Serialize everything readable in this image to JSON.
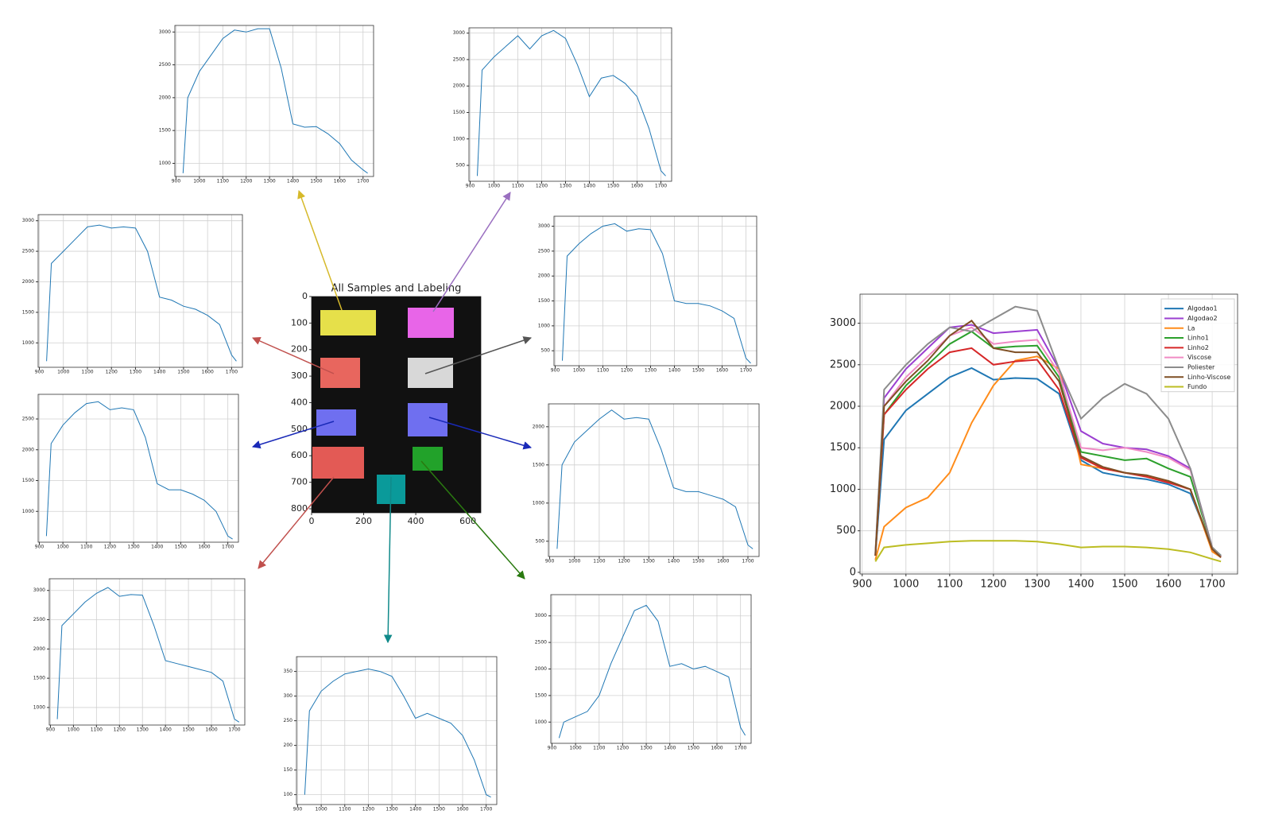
{
  "chart_data": [
    {
      "type": "line",
      "x": [
        930,
        950,
        1000,
        1050,
        1100,
        1150,
        1200,
        1250,
        1300,
        1350,
        1400,
        1450,
        1500,
        1550,
        1600,
        1650,
        1700,
        1720
      ],
      "xlim": [
        895,
        1758
      ],
      "ylim": [
        -20,
        3350
      ],
      "xticks": [
        900,
        1000,
        1100,
        1200,
        1300,
        1400,
        1500,
        1600,
        1700
      ],
      "yticks": [
        0,
        500,
        1000,
        1500,
        2000,
        2500,
        3000
      ],
      "grid": true,
      "legend": "upper right",
      "series": [
        {
          "name": "Algodao1",
          "color": "#1f77b4",
          "values": [
            200,
            1600,
            1950,
            2150,
            2350,
            2460,
            2320,
            2340,
            2330,
            2150,
            1350,
            1200,
            1150,
            1120,
            1060,
            950,
            300,
            200
          ]
        },
        {
          "name": "Algodao2",
          "color": "#9b3fd1",
          "values": [
            220,
            2100,
            2450,
            2700,
            2950,
            2980,
            2880,
            2900,
            2920,
            2450,
            1700,
            1550,
            1500,
            1480,
            1400,
            1250,
            300,
            200
          ]
        },
        {
          "name": "La",
          "color": "#ff8c1a",
          "values": [
            150,
            550,
            780,
            900,
            1200,
            1800,
            2250,
            2550,
            2600,
            2450,
            1300,
            1250,
            1200,
            1160,
            1100,
            1000,
            250,
            180
          ]
        },
        {
          "name": "Linho1",
          "color": "#2ca02c",
          "values": [
            200,
            1900,
            2250,
            2500,
            2750,
            2900,
            2700,
            2720,
            2730,
            2350,
            1450,
            1400,
            1350,
            1370,
            1250,
            1150,
            300,
            200
          ]
        },
        {
          "name": "Linho2",
          "color": "#d62728",
          "values": [
            200,
            1900,
            2200,
            2450,
            2650,
            2700,
            2500,
            2540,
            2560,
            2200,
            1380,
            1250,
            1200,
            1150,
            1080,
            1000,
            280,
            180
          ]
        },
        {
          "name": "Viscose",
          "color": "#f08bc4",
          "values": [
            210,
            2000,
            2350,
            2600,
            2850,
            2950,
            2750,
            2780,
            2800,
            2400,
            1500,
            1470,
            1500,
            1450,
            1380,
            1230,
            300,
            190
          ]
        },
        {
          "name": "Poliester",
          "color": "#8c8c8c",
          "values": [
            230,
            2200,
            2500,
            2750,
            2950,
            2900,
            3050,
            3200,
            3150,
            2450,
            1850,
            2100,
            2270,
            2150,
            1850,
            1250,
            300,
            200
          ]
        },
        {
          "name": "Linho-Viscose",
          "color": "#7f4f24",
          "values": [
            200,
            2000,
            2300,
            2550,
            2850,
            3030,
            2700,
            2650,
            2650,
            2300,
            1400,
            1270,
            1200,
            1170,
            1100,
            1000,
            280,
            180
          ]
        },
        {
          "name": "Fundo",
          "color": "#bcbd22",
          "values": [
            130,
            300,
            330,
            350,
            370,
            380,
            380,
            380,
            370,
            340,
            300,
            310,
            310,
            300,
            280,
            240,
            160,
            130
          ]
        }
      ]
    },
    {
      "type": "image",
      "title": "All Samples and Labeling",
      "xlim": [
        0,
        650
      ],
      "ylim": [
        0,
        815
      ],
      "xticks": [
        0,
        200,
        400,
        600
      ],
      "yticks": [
        0,
        100,
        200,
        300,
        400,
        500,
        600,
        700,
        800
      ]
    },
    {
      "type": "line",
      "color": "#1f77b4",
      "x": [
        930,
        950,
        1000,
        1050,
        1100,
        1150,
        1200,
        1250,
        1300,
        1350,
        1400,
        1450,
        1500,
        1550,
        1600,
        1650,
        1700,
        1720
      ],
      "xlim": [
        895,
        1745
      ],
      "ylim": [
        800,
        3100
      ],
      "xticks": [
        900,
        1000,
        1100,
        1200,
        1300,
        1400,
        1500,
        1600,
        1700
      ],
      "yticks": [
        1000,
        1500,
        2000,
        2500,
        3000
      ],
      "grid": true,
      "values": [
        850,
        2000,
        2400,
        2650,
        2900,
        3030,
        3000,
        3050,
        3050,
        2450,
        1600,
        1550,
        1560,
        1450,
        1300,
        1050,
        900,
        850
      ]
    },
    {
      "type": "line",
      "color": "#1f77b4",
      "x": [
        930,
        950,
        1000,
        1050,
        1100,
        1150,
        1200,
        1250,
        1300,
        1350,
        1400,
        1450,
        1500,
        1550,
        1600,
        1650,
        1700,
        1720
      ],
      "xlim": [
        895,
        1745
      ],
      "ylim": [
        200,
        3100
      ],
      "xticks": [
        900,
        1000,
        1100,
        1200,
        1300,
        1400,
        1500,
        1600,
        1700
      ],
      "yticks": [
        500,
        1000,
        1500,
        2000,
        2500,
        3000
      ],
      "grid": true,
      "values": [
        300,
        2300,
        2550,
        2750,
        2950,
        2700,
        2950,
        3050,
        2900,
        2400,
        1800,
        2150,
        2200,
        2050,
        1800,
        1200,
        400,
        300
      ]
    },
    {
      "type": "line",
      "color": "#1f77b4",
      "x": [
        930,
        950,
        1000,
        1050,
        1100,
        1150,
        1200,
        1250,
        1300,
        1350,
        1400,
        1450,
        1500,
        1550,
        1600,
        1650,
        1700,
        1720
      ],
      "xlim": [
        895,
        1745
      ],
      "ylim": [
        600,
        3100
      ],
      "xticks": [
        900,
        1000,
        1100,
        1200,
        1300,
        1400,
        1500,
        1600,
        1700
      ],
      "yticks": [
        1000,
        1500,
        2000,
        2500,
        3000
      ],
      "grid": true,
      "values": [
        700,
        2300,
        2500,
        2700,
        2900,
        2930,
        2880,
        2900,
        2880,
        2500,
        1750,
        1700,
        1600,
        1550,
        1450,
        1300,
        800,
        700
      ]
    },
    {
      "type": "line",
      "color": "#1f77b4",
      "x": [
        930,
        950,
        1000,
        1050,
        1100,
        1150,
        1200,
        1250,
        1300,
        1350,
        1400,
        1450,
        1500,
        1550,
        1600,
        1650,
        1700,
        1720
      ],
      "xlim": [
        895,
        1745
      ],
      "ylim": [
        200,
        3200
      ],
      "xticks": [
        900,
        1000,
        1100,
        1200,
        1300,
        1400,
        1500,
        1600,
        1700
      ],
      "yticks": [
        500,
        1000,
        1500,
        2000,
        2500,
        3000
      ],
      "grid": true,
      "values": [
        300,
        2400,
        2650,
        2850,
        3000,
        3050,
        2900,
        2950,
        2930,
        2450,
        1500,
        1450,
        1450,
        1400,
        1300,
        1150,
        350,
        250
      ]
    },
    {
      "type": "line",
      "color": "#1f77b4",
      "x": [
        930,
        950,
        1000,
        1050,
        1100,
        1150,
        1200,
        1250,
        1300,
        1350,
        1400,
        1450,
        1500,
        1550,
        1600,
        1650,
        1700,
        1720
      ],
      "xlim": [
        895,
        1745
      ],
      "ylim": [
        500,
        2900
      ],
      "xticks": [
        900,
        1000,
        1100,
        1200,
        1300,
        1400,
        1500,
        1600,
        1700
      ],
      "yticks": [
        1000,
        1500,
        2000,
        2500
      ],
      "grid": true,
      "values": [
        600,
        2100,
        2400,
        2600,
        2750,
        2780,
        2650,
        2680,
        2650,
        2200,
        1450,
        1350,
        1350,
        1280,
        1180,
        1000,
        600,
        550
      ]
    },
    {
      "type": "line",
      "color": "#1f77b4",
      "x": [
        930,
        950,
        1000,
        1050,
        1100,
        1150,
        1200,
        1250,
        1300,
        1350,
        1400,
        1450,
        1500,
        1550,
        1600,
        1650,
        1700,
        1720
      ],
      "xlim": [
        895,
        1745
      ],
      "ylim": [
        300,
        2300
      ],
      "xticks": [
        900,
        1000,
        1100,
        1200,
        1300,
        1400,
        1500,
        1600,
        1700
      ],
      "yticks": [
        500,
        1000,
        1500,
        2000
      ],
      "grid": true,
      "values": [
        400,
        1500,
        1800,
        1950,
        2100,
        2220,
        2100,
        2120,
        2100,
        1700,
        1200,
        1150,
        1150,
        1100,
        1050,
        950,
        450,
        400
      ]
    },
    {
      "type": "line",
      "color": "#1f77b4",
      "x": [
        930,
        950,
        1000,
        1050,
        1100,
        1150,
        1200,
        1250,
        1300,
        1350,
        1400,
        1450,
        1500,
        1550,
        1600,
        1650,
        1700,
        1720
      ],
      "xlim": [
        895,
        1745
      ],
      "ylim": [
        700,
        3200
      ],
      "xticks": [
        900,
        1000,
        1100,
        1200,
        1300,
        1400,
        1500,
        1600,
        1700
      ],
      "yticks": [
        1000,
        1500,
        2000,
        2500,
        3000
      ],
      "grid": true,
      "values": [
        800,
        2400,
        2600,
        2800,
        2950,
        3050,
        2900,
        2930,
        2920,
        2400,
        1800,
        1750,
        1700,
        1650,
        1600,
        1450,
        800,
        750
      ]
    },
    {
      "type": "line",
      "color": "#1f77b4",
      "x": [
        930,
        950,
        1000,
        1050,
        1100,
        1150,
        1200,
        1250,
        1300,
        1350,
        1400,
        1450,
        1500,
        1550,
        1600,
        1650,
        1700,
        1720
      ],
      "xlim": [
        895,
        1745
      ],
      "ylim": [
        80,
        380
      ],
      "xticks": [
        900,
        1000,
        1100,
        1200,
        1300,
        1400,
        1500,
        1600,
        1700
      ],
      "yticks": [
        100,
        150,
        200,
        250,
        300,
        350
      ],
      "grid": true,
      "values": [
        100,
        270,
        310,
        330,
        345,
        350,
        355,
        350,
        340,
        300,
        255,
        265,
        255,
        245,
        220,
        170,
        100,
        95
      ]
    },
    {
      "type": "line",
      "color": "#1f77b4",
      "x": [
        930,
        950,
        1000,
        1050,
        1100,
        1150,
        1200,
        1250,
        1300,
        1350,
        1400,
        1450,
        1500,
        1550,
        1600,
        1650,
        1700,
        1720
      ],
      "xlim": [
        895,
        1745
      ],
      "ylim": [
        600,
        3400
      ],
      "xticks": [
        900,
        1000,
        1100,
        1200,
        1300,
        1400,
        1500,
        1600,
        1700
      ],
      "yticks": [
        1000,
        1500,
        2000,
        2500,
        3000
      ],
      "grid": true,
      "values": [
        700,
        1000,
        1100,
        1200,
        1500,
        2100,
        2600,
        3100,
        3200,
        2900,
        2050,
        2100,
        2000,
        2050,
        1950,
        1850,
        900,
        750
      ]
    }
  ]
}
